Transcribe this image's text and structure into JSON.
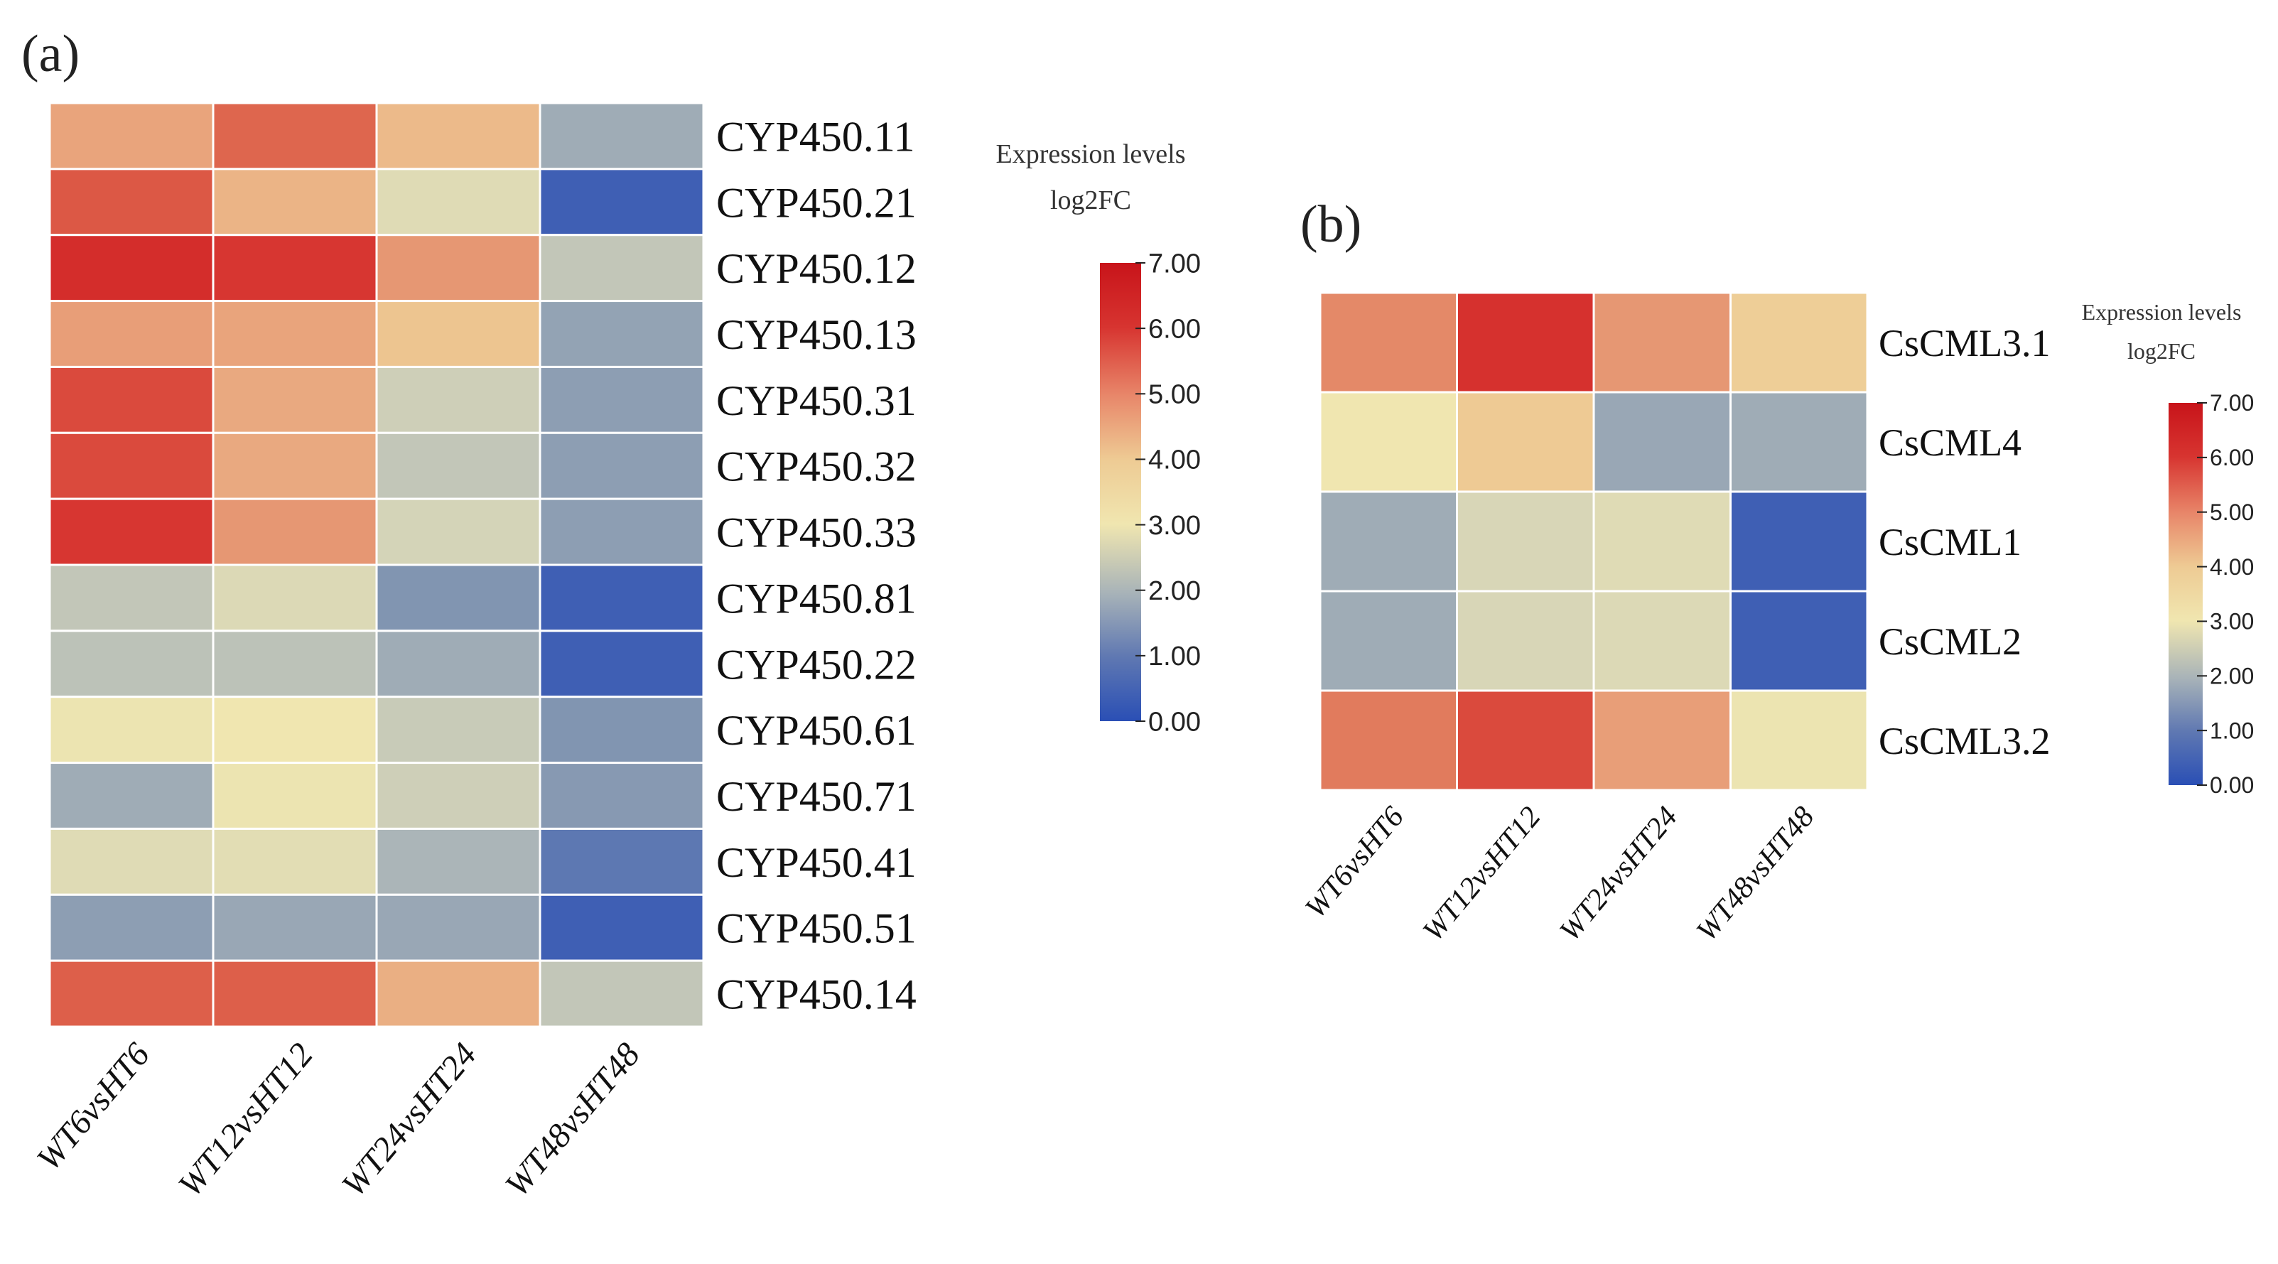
{
  "chart_data": [
    {
      "type": "heatmap",
      "panel_label": "(a)",
      "columns": [
        "WT6vsHT6",
        "WT12vsHT12",
        "WT24vsHT24",
        "WT48vsHT48"
      ],
      "rows": [
        "CYP450.11",
        "CYP450.21",
        "CYP450.12",
        "CYP450.13",
        "CYP450.31",
        "CYP450.32",
        "CYP450.33",
        "CYP450.81",
        "CYP450.22",
        "CYP450.61",
        "CYP450.71",
        "CYP450.41",
        "CYP450.51",
        "CYP450.14"
      ],
      "values": [
        [
          4.6,
          5.5,
          4.2,
          1.4
        ],
        [
          5.7,
          4.3,
          2.6,
          0.2
        ],
        [
          6.4,
          6.2,
          4.8,
          2.0
        ],
        [
          4.7,
          4.6,
          4.0,
          1.2
        ],
        [
          5.9,
          4.5,
          2.2,
          1.1
        ],
        [
          5.9,
          4.5,
          2.0,
          1.1
        ],
        [
          6.2,
          4.8,
          2.3,
          1.1
        ],
        [
          2.0,
          2.5,
          0.9,
          0.2
        ],
        [
          1.9,
          1.9,
          1.4,
          0.2
        ],
        [
          3.0,
          3.1,
          2.1,
          0.9
        ],
        [
          1.4,
          3.0,
          2.2,
          1.0
        ],
        [
          2.6,
          2.7,
          1.6,
          0.5
        ],
        [
          1.1,
          1.3,
          1.3,
          0.2
        ],
        [
          5.6,
          5.6,
          4.4,
          2.0
        ]
      ],
      "legend": {
        "title_line1": "Expression levels",
        "title_line2": "log2FC",
        "min": 0,
        "max": 7,
        "ticks": [
          "0.00",
          "1.00",
          "2.00",
          "3.00",
          "4.00",
          "5.00",
          "6.00",
          "7.00"
        ]
      }
    },
    {
      "type": "heatmap",
      "panel_label": "(b)",
      "columns": [
        "WT6vsHT6",
        "WT12vsHT12",
        "WT24vsHT24",
        "WT48vsHT48"
      ],
      "rows": [
        "CsCML3.1",
        "CsCML4",
        "CsCML1",
        "CsCML2",
        "CsCML3.2"
      ],
      "values": [
        [
          5.0,
          6.3,
          4.8,
          3.8
        ],
        [
          3.1,
          3.9,
          1.3,
          1.4
        ],
        [
          1.4,
          2.4,
          2.6,
          0.2
        ],
        [
          1.4,
          2.4,
          2.5,
          0.2
        ],
        [
          5.2,
          5.9,
          4.7,
          3.0
        ]
      ],
      "legend": {
        "title_line1": "Expression levels",
        "title_line2": "log2FC",
        "min": 0,
        "max": 7,
        "ticks": [
          "0.00",
          "1.00",
          "2.00",
          "3.00",
          "4.00",
          "5.00",
          "6.00",
          "7.00"
        ]
      }
    }
  ],
  "colors": {
    "scale": [
      "#2a4fb5",
      "#7a8fb0",
      "#a8b3b8",
      "#d6d5b8",
      "#f0e6b0",
      "#eecb94",
      "#e8a07a",
      "#de6a50",
      "#d73430",
      "#c8141a"
    ],
    "grid": "#ffffff",
    "tick": "#222222"
  }
}
